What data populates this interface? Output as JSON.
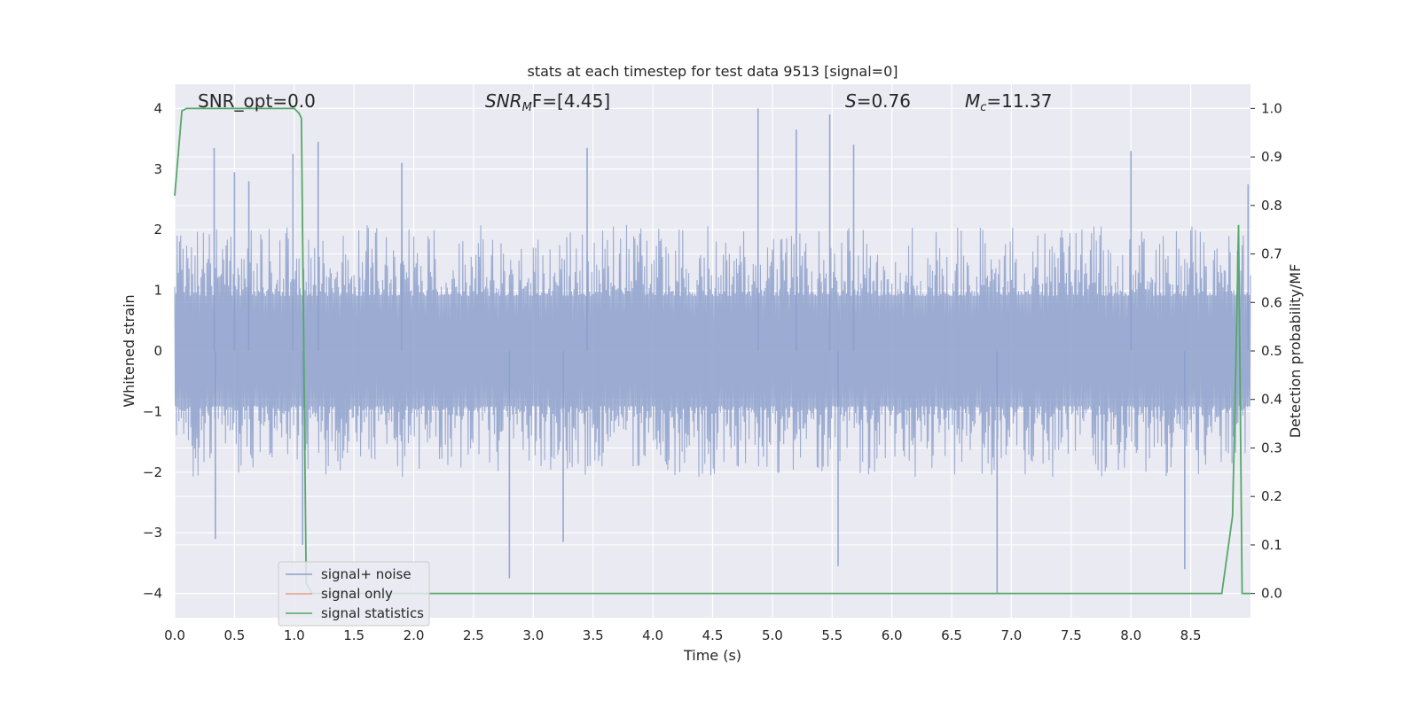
{
  "chart_data": {
    "type": "line",
    "title": "stats at each timestep for test data 9513 [signal=0]",
    "xlabel": "Time (s)",
    "ylabel": "Whitened strain",
    "y2label": "Detection probability/MF",
    "xlim": [
      0,
      9.0
    ],
    "ylim": [
      -4.4,
      4.4
    ],
    "y2lim": [
      -0.05,
      1.05
    ],
    "xticks": [
      "0.0",
      "0.5",
      "1.0",
      "1.5",
      "2.0",
      "2.5",
      "3.0",
      "3.5",
      "4.0",
      "4.5",
      "5.0",
      "5.5",
      "6.0",
      "6.5",
      "7.0",
      "7.5",
      "8.0",
      "8.5"
    ],
    "yticks": [
      "4",
      "3",
      "2",
      "1",
      "0",
      "−1",
      "−2",
      "−3",
      "−4"
    ],
    "y2ticks": [
      "1.0",
      "0.9",
      "0.8",
      "0.7",
      "0.6",
      "0.5",
      "0.4",
      "0.3",
      "0.2",
      "0.1",
      "0.0"
    ],
    "grid": true,
    "legend_position": "lower-left",
    "annotations": {
      "snr_opt": "SNR_opt=0.0",
      "snr_mf_main": "SNR",
      "snr_mf_sub": "M",
      "snr_mf_rest": "F=[4.45]",
      "s_var": "S",
      "s_value": "=0.76",
      "mc_main": "M",
      "mc_sub": "c",
      "mc_value": "=11.37"
    },
    "series": [
      {
        "name": "signal+ noise",
        "axis": "left",
        "color": "#8da0cb",
        "style": "noise",
        "amplitude_typical": 1.3,
        "spikes": [
          {
            "x": 0.33,
            "y": 3.35
          },
          {
            "x": 0.5,
            "y": 2.95
          },
          {
            "x": 0.62,
            "y": 2.8
          },
          {
            "x": 0.99,
            "y": 3.25
          },
          {
            "x": 1.2,
            "y": 3.45
          },
          {
            "x": 1.9,
            "y": 3.1
          },
          {
            "x": 3.45,
            "y": 3.35
          },
          {
            "x": 4.88,
            "y": 4.0
          },
          {
            "x": 5.2,
            "y": 3.65
          },
          {
            "x": 5.48,
            "y": 3.9
          },
          {
            "x": 5.68,
            "y": 3.4
          },
          {
            "x": 8.0,
            "y": 3.3
          },
          {
            "x": 8.98,
            "y": 2.75
          },
          {
            "x": 0.34,
            "y": -3.1
          },
          {
            "x": 2.8,
            "y": -3.75
          },
          {
            "x": 3.25,
            "y": -3.15
          },
          {
            "x": 5.55,
            "y": -3.55
          },
          {
            "x": 6.88,
            "y": -4.0
          },
          {
            "x": 8.45,
            "y": -3.6
          },
          {
            "x": 1.07,
            "y": -3.2
          }
        ]
      },
      {
        "name": "signal only",
        "axis": "left",
        "color": "#e5a081",
        "x": [],
        "y": []
      },
      {
        "name": "signal statistics",
        "axis": "right",
        "color": "#55a868",
        "x": [
          0.0,
          0.06,
          0.1,
          0.2,
          0.5,
          0.8,
          1.0,
          1.04,
          1.06,
          1.1,
          1.15,
          1.2,
          2.0,
          4.0,
          6.0,
          8.0,
          8.7,
          8.76,
          8.85,
          8.88,
          8.9,
          8.93,
          9.0
        ],
        "y": [
          0.82,
          0.995,
          1.0,
          1.0,
          1.0,
          1.0,
          1.0,
          0.99,
          0.98,
          0.02,
          0.0,
          0.0,
          0.0,
          0.0,
          0.0,
          0.0,
          0.0,
          0.0,
          0.16,
          0.5,
          0.76,
          0.0,
          0.0
        ]
      }
    ]
  }
}
